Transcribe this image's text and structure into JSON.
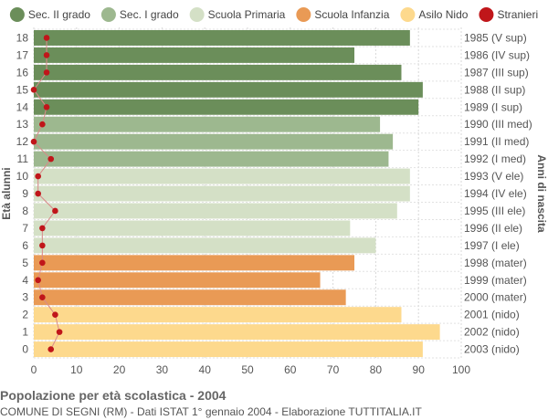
{
  "chart_data": {
    "type": "bar",
    "orientation": "horizontal",
    "title": "Popolazione per età scolastica - 2004",
    "subtitle": "COMUNE DI SEGNI (RM) - Dati ISTAT 1° gennaio 2004 - Elaborazione TUTTITALIA.IT",
    "ylabel_left": "Età alunni",
    "ylabel_right": "Anni di nascita",
    "xlim": [
      0,
      100
    ],
    "xticks": [
      0,
      10,
      20,
      30,
      40,
      50,
      60,
      70,
      80,
      90,
      100
    ],
    "grid": true,
    "legend_position": "top",
    "legend": [
      {
        "name": "Sec. II grado",
        "color": "#6b8e5a",
        "marker": "circle"
      },
      {
        "name": "Sec. I grado",
        "color": "#9db88f",
        "marker": "circle"
      },
      {
        "name": "Scuola Primaria",
        "color": "#d4e0c6",
        "marker": "circle"
      },
      {
        "name": "Scuola Infanzia",
        "color": "#e99a55",
        "marker": "circle"
      },
      {
        "name": "Asilo Nido",
        "color": "#fdd98d",
        "marker": "circle"
      },
      {
        "name": "Stranieri",
        "color": "#c0161a",
        "marker": "circle"
      }
    ],
    "ages": [
      "18",
      "17",
      "16",
      "15",
      "14",
      "13",
      "12",
      "11",
      "10",
      "9",
      "8",
      "7",
      "6",
      "5",
      "4",
      "3",
      "2",
      "1",
      "0"
    ],
    "birth_years": [
      "1985 (V sup)",
      "1986 (IV sup)",
      "1987 (III sup)",
      "1988 (II sup)",
      "1989 (I sup)",
      "1990 (III med)",
      "1991 (II med)",
      "1992 (I med)",
      "1993 (V ele)",
      "1994 (IV ele)",
      "1995 (III ele)",
      "1996 (II ele)",
      "1997 (I ele)",
      "1998 (mater)",
      "1999 (mater)",
      "2000 (mater)",
      "2001 (nido)",
      "2002 (nido)",
      "2003 (nido)"
    ],
    "values": [
      88,
      75,
      86,
      91,
      90,
      81,
      84,
      83,
      88,
      88,
      85,
      74,
      80,
      75,
      67,
      73,
      86,
      95,
      91
    ],
    "groups": [
      "Sec. II grado",
      "Sec. II grado",
      "Sec. II grado",
      "Sec. II grado",
      "Sec. II grado",
      "Sec. I grado",
      "Sec. I grado",
      "Sec. I grado",
      "Scuola Primaria",
      "Scuola Primaria",
      "Scuola Primaria",
      "Scuola Primaria",
      "Scuola Primaria",
      "Scuola Infanzia",
      "Scuola Infanzia",
      "Scuola Infanzia",
      "Asilo Nido",
      "Asilo Nido",
      "Asilo Nido"
    ],
    "stranieri": [
      3,
      3,
      3,
      0,
      3,
      2,
      0,
      4,
      1,
      1,
      5,
      2,
      2,
      2,
      1,
      2,
      5,
      6,
      4
    ]
  }
}
